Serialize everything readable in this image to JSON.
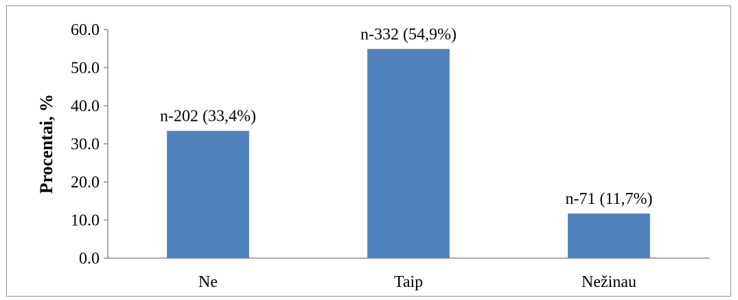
{
  "chart_data": {
    "type": "bar",
    "categories": [
      "Ne",
      "Taip",
      "Nežinau"
    ],
    "values": [
      33.4,
      54.9,
      11.7
    ],
    "data_labels": [
      "n-202 (33,4%)",
      "n-332 (54,9%)",
      "n-71 (11,7%)"
    ],
    "title": "",
    "xlabel": "",
    "ylabel": "Procentai, %",
    "ylim": [
      0,
      60
    ],
    "yticks": [
      "0.0",
      "10.0",
      "20.0",
      "30.0",
      "40.0",
      "50.0",
      "60.0"
    ],
    "grid": false,
    "legend": "none",
    "bar_color": "#4f81bd"
  }
}
